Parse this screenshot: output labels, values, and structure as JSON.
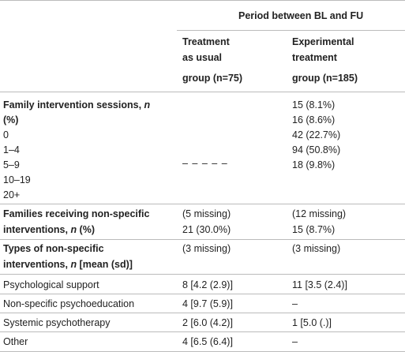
{
  "header": {
    "period": "Period between BL and FU",
    "col1": [
      "Treatment",
      "as usual",
      "group (n=75)"
    ],
    "col2": [
      "Experimental",
      "treatment",
      "group (n=185)"
    ]
  },
  "sections": {
    "family_sessions": {
      "label_main": "Family intervention sessions, ",
      "label_n": "n",
      "label_pct": "(%)",
      "categories": [
        "0",
        "1–4",
        "5–9",
        "10–19",
        "20+"
      ],
      "tau_value": "– – – – –",
      "exp_values": [
        "15 (8.1%)",
        "16 (8.6%)",
        "42 (22.7%)",
        "94 (50.8%)",
        "18 (9.8%)"
      ]
    },
    "families_nonspecific": {
      "label_line1": "Families receiving non-specific",
      "label_line2_main": "interventions, ",
      "label_n": "n",
      "label_pct": " (%)",
      "tau": [
        "(5 missing)",
        "21 (30.0%)"
      ],
      "exp": [
        "(12 missing)",
        "15 (8.7%)"
      ]
    },
    "types_nonspecific": {
      "label_line1": "Types of non-specific",
      "label_line2_main": "interventions, ",
      "label_n": "n",
      "label_rest": " [mean (sd)]",
      "tau_missing": "(3 missing)",
      "exp_missing": "(3 missing)",
      "rows": [
        {
          "label": "Psychological support",
          "tau": "8 [4.2 (2.9)]",
          "exp": "11 [3.5 (2.4)]"
        },
        {
          "label": "Non-specific psychoeducation",
          "tau": "4 [9.7 (5.9)]",
          "exp": "–"
        },
        {
          "label": "Systemic psychotherapy",
          "tau": "2 [6.0 (4.2)]",
          "exp": "1 [5.0 (.)]"
        },
        {
          "label": "Other",
          "tau": "4 [6.5 (6.4)]",
          "exp": "–"
        }
      ]
    }
  }
}
